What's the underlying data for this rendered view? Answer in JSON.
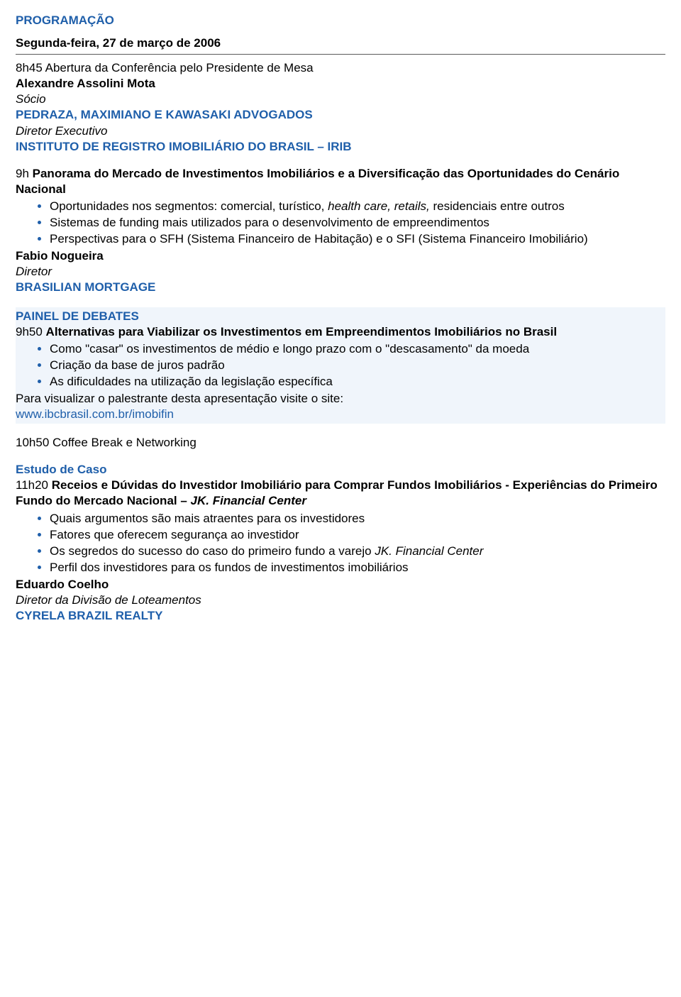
{
  "colors": {
    "blue": "#1f5faa",
    "black": "#000000",
    "highlight_bg": "#f0f5fb",
    "background": "#ffffff",
    "hr": "#5a5a5a"
  },
  "typography": {
    "font_family": "Arial",
    "body_fontsize_pt": 13,
    "line_height": 1.3
  },
  "header": {
    "program": "PROGRAMAÇÃO",
    "date_line": "Segunda-feira, 27 de março de 2006"
  },
  "s1": {
    "time_title": "8h45 Abertura da Conferência pelo Presidente de Mesa",
    "name": "Alexandre Assolini Mota",
    "role": "Sócio",
    "org1": "PEDRAZA, MAXIMIANO E KAWASAKI ADVOGADOS",
    "role2": "Diretor Executivo",
    "org2": "INSTITUTO DE REGISTRO IMOBILIÁRIO DO BRASIL – IRIB"
  },
  "s2": {
    "time": "9h ",
    "title_part1": "Panorama do Mercado de Investimentos Imobiliários e a Diversificação das Oportunidades do Cenário Nacional",
    "b1a": "Oportunidades nos segmentos: comercial, turístico, ",
    "b1b": "health care, retails,",
    "b1c": " residenciais entre outros",
    "b2": "Sistemas de funding mais utilizados para o desenvolvimento de empreendimentos",
    "b3": "Perspectivas para o SFH (Sistema Financeiro de Habitação) e o SFI (Sistema Financeiro Imobiliário)",
    "name": "Fabio Nogueira",
    "role": "Diretor",
    "org": "BRASILIAN MORTGAGE"
  },
  "s3": {
    "panel": "PAINEL DE DEBATES",
    "time": "9h50 ",
    "title": "Alternativas para Viabilizar os Investimentos em Empreendimentos Imobiliários no Brasil",
    "b1": "Como \"casar\" os investimentos de médio e longo prazo com o \"descasamento\" da moeda",
    "b2": "Criação da base de juros padrão",
    "b3": "As dificuldades na utilização da legislação específica",
    "note": "Para visualizar o palestrante desta apresentação visite o site:",
    "link": "www.ibcbrasil.com.br/imobifin"
  },
  "s4": {
    "text": "10h50 Coffee Break e Networking"
  },
  "s5": {
    "label": "Estudo de Caso",
    "time": "11h20 ",
    "title_a": "Receios e Dúvidas do Investidor Imobiliário para Comprar Fundos Imobiliários - Experiências do Primeiro Fundo do Mercado Nacional – ",
    "title_b": "JK. Financial Center",
    "b1": "Quais argumentos são mais atraentes para os investidores",
    "b2": "Fatores que oferecem segurança ao investidor",
    "b3a": "Os segredos do sucesso do caso do primeiro fundo a varejo ",
    "b3b": "JK. Financial Center",
    "b4": "Perfil dos investidores para os fundos de investimentos imobiliários",
    "name": "Eduardo Coelho",
    "role": "Diretor da Divisão de Loteamentos",
    "org": "CYRELA BRAZIL REALTY"
  }
}
